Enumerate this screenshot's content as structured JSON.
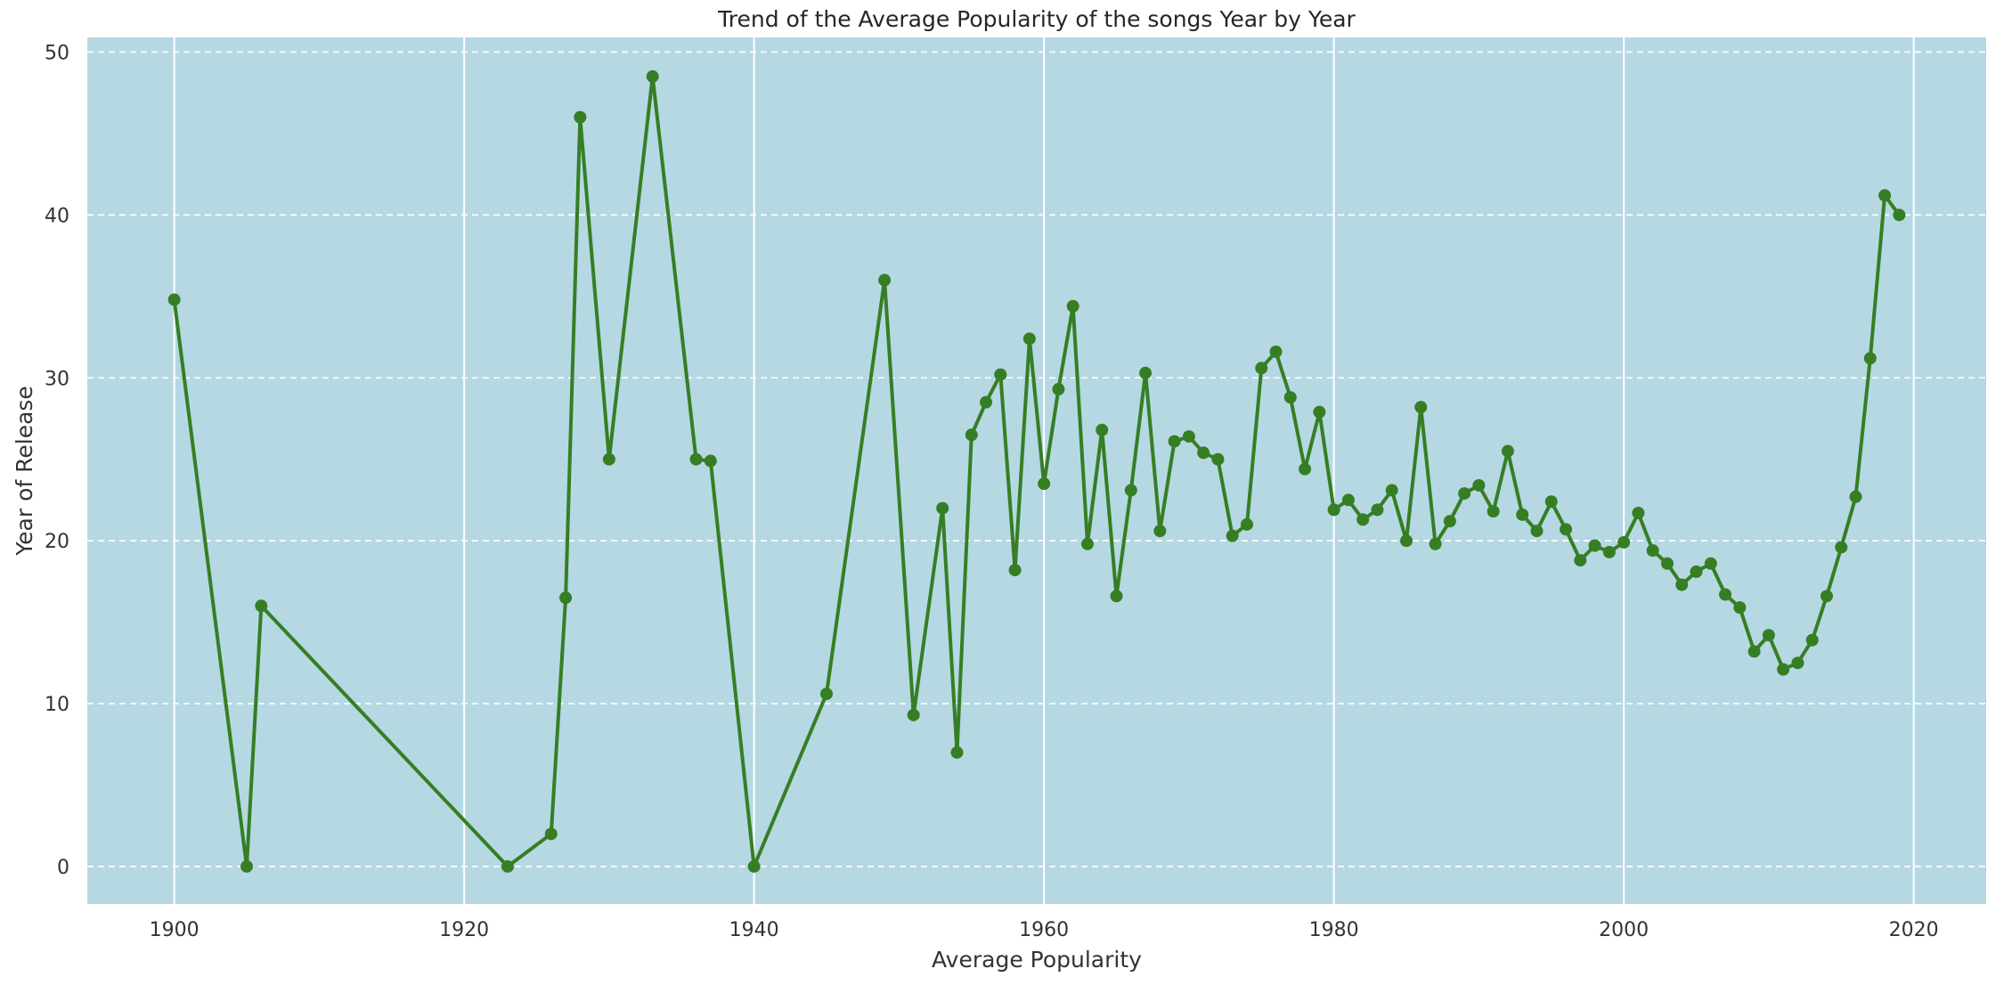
{
  "chart_data": {
    "type": "line",
    "title": "Trend of the Average Popularity of the songs Year by Year",
    "xlabel": "Average Popularity",
    "ylabel": "Year of Release",
    "xlim": [
      1894,
      2025
    ],
    "ylim": [
      -2.3,
      50.9
    ],
    "xticks": [
      1900,
      1920,
      1940,
      1960,
      1980,
      2000,
      2020
    ],
    "yticks": [
      0,
      10,
      20,
      30,
      40,
      50
    ],
    "grid": {
      "vertical": "solid",
      "horizontal": "dashed"
    },
    "colors": {
      "background": "#b6d8e3",
      "grid": "#ffffff",
      "line": "#367e24"
    },
    "series": [
      {
        "x": [
          1900,
          1905,
          1906,
          1923,
          1926,
          1927,
          1928,
          1930,
          1933,
          1936,
          1937,
          1940,
          1945,
          1949,
          1951,
          1953,
          1954,
          1955,
          1956,
          1957,
          1958,
          1959,
          1960,
          1961,
          1962,
          1963,
          1964,
          1965,
          1966,
          1967,
          1968,
          1969,
          1970,
          1971,
          1972,
          1973,
          1974,
          1975,
          1976,
          1977,
          1978,
          1979,
          1980,
          1981,
          1982,
          1983,
          1984,
          1985,
          1986,
          1987,
          1988,
          1989,
          1990,
          1991,
          1992,
          1993,
          1994,
          1995,
          1996,
          1997,
          1998,
          1999,
          2000,
          2001,
          2002,
          2003,
          2004,
          2005,
          2006,
          2007,
          2008,
          2009,
          2010,
          2011,
          2012,
          2013,
          2014,
          2015,
          2016,
          2017,
          2018,
          2019
        ],
        "values": [
          34.8,
          0,
          16.0,
          0,
          2.0,
          16.5,
          46.0,
          25.0,
          48.5,
          25.0,
          24.9,
          0,
          10.6,
          36.0,
          9.3,
          22.0,
          7.0,
          26.5,
          28.5,
          30.2,
          18.2,
          32.4,
          23.5,
          29.3,
          34.4,
          19.8,
          26.8,
          16.6,
          23.1,
          30.3,
          20.6,
          26.1,
          26.4,
          25.4,
          25.0,
          20.3,
          21.0,
          30.6,
          31.6,
          28.8,
          24.4,
          27.9,
          21.9,
          22.5,
          21.3,
          21.9,
          23.1,
          20.0,
          28.2,
          19.8,
          21.2,
          22.9,
          23.4,
          21.8,
          25.5,
          21.6,
          20.6,
          22.4,
          20.7,
          18.8,
          19.7,
          19.3,
          19.9,
          21.7,
          19.4,
          18.6,
          17.3,
          18.1,
          18.6,
          16.7,
          15.9,
          13.2,
          14.2,
          12.1,
          12.5,
          13.9,
          16.6,
          19.6,
          22.7,
          31.2,
          41.2,
          40.0
        ]
      }
    ]
  }
}
